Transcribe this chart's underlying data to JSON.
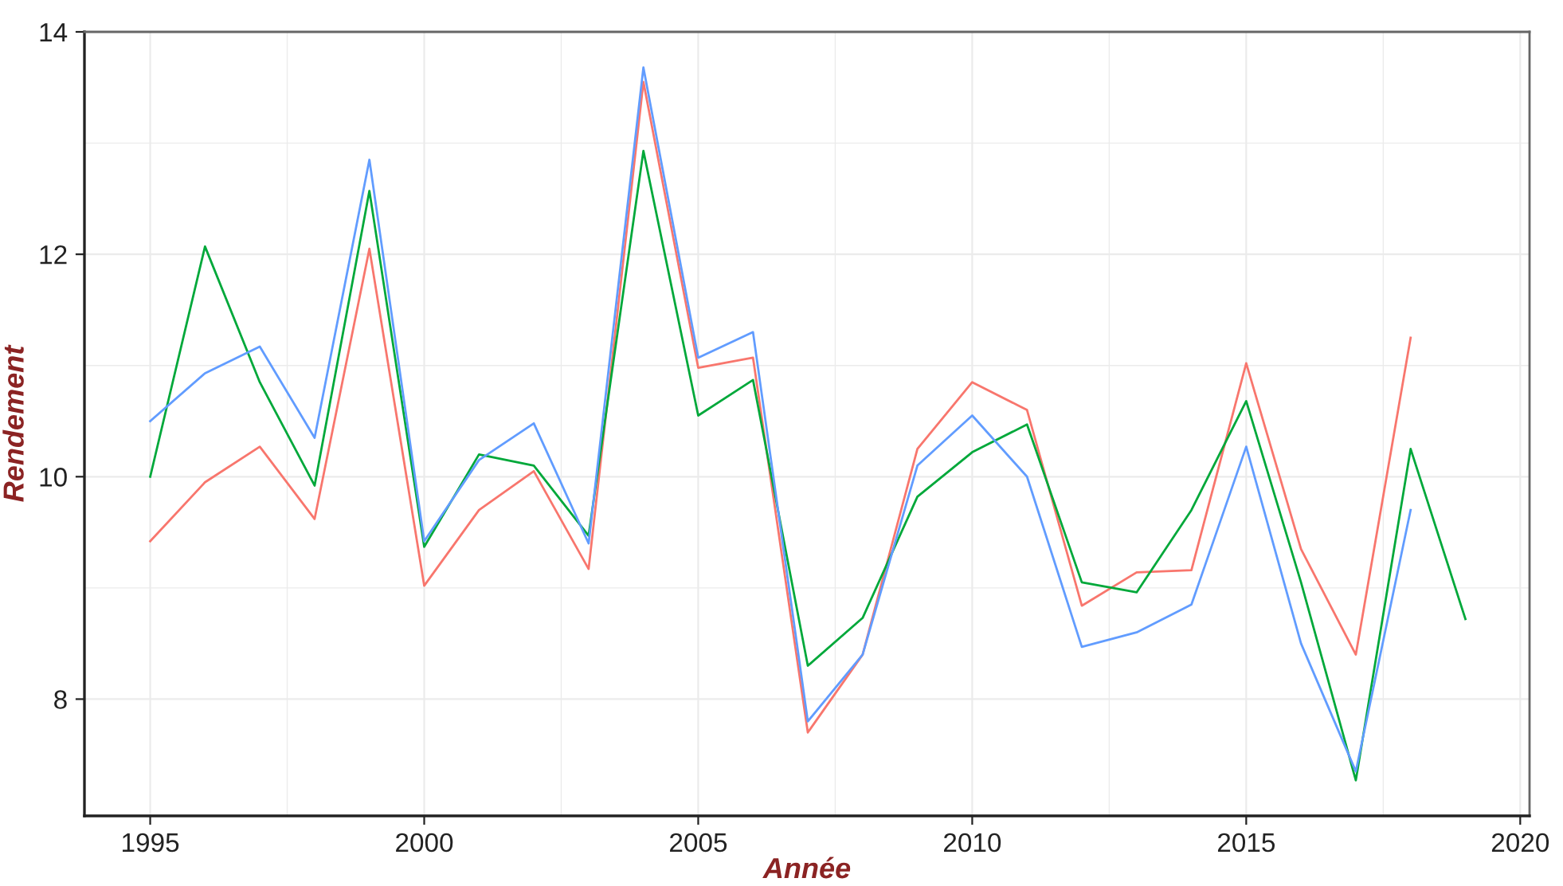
{
  "chart_data": {
    "type": "line",
    "xlabel": "Année",
    "ylabel": "Rendement",
    "xlim": [
      1993.8,
      2020.17
    ],
    "xticks": [
      1995,
      2000,
      2005,
      2010,
      2015,
      2020
    ],
    "ylim": [
      6.95,
      14
    ],
    "yticks": [
      8,
      10,
      12,
      14
    ],
    "grid": true,
    "marker": "none",
    "line_style": "solid",
    "series": [
      {
        "color": "#f8766d",
        "x": [
          1995,
          1996,
          1997,
          1998,
          1999,
          2000,
          2001,
          2002,
          2003,
          2004,
          2005,
          2006,
          2007,
          2008,
          2009,
          2010,
          2011,
          2012,
          2013,
          2014,
          2015,
          2016,
          2017,
          2018
        ],
        "values": [
          9.42,
          9.95,
          10.27,
          9.62,
          12.05,
          9.02,
          9.7,
          10.05,
          9.17,
          13.55,
          10.98,
          11.07,
          7.7,
          8.4,
          10.25,
          10.85,
          10.6,
          8.84,
          9.14,
          9.16,
          11.02,
          9.35,
          8.4,
          11.25
        ]
      },
      {
        "color": "#00a83a",
        "x": [
          1995,
          1996,
          1997,
          1998,
          1999,
          2000,
          2001,
          2002,
          2003,
          2004,
          2005,
          2006,
          2007,
          2008,
          2009,
          2010,
          2011,
          2012,
          2013,
          2014,
          2015,
          2016,
          2017,
          2018,
          2019
        ],
        "values": [
          10.0,
          12.07,
          10.85,
          9.92,
          12.57,
          9.37,
          10.2,
          10.1,
          9.47,
          12.93,
          10.55,
          10.87,
          8.3,
          8.73,
          9.82,
          10.22,
          10.47,
          9.05,
          8.96,
          9.7,
          10.68,
          9.05,
          7.27,
          10.25,
          8.72
        ]
      },
      {
        "color": "#619cff",
        "x": [
          1995,
          1996,
          1997,
          1998,
          1999,
          2000,
          2001,
          2002,
          2003,
          2004,
          2005,
          2006,
          2007,
          2008,
          2009,
          2010,
          2011,
          2012,
          2013,
          2014,
          2015,
          2016,
          2017,
          2018
        ],
        "values": [
          10.5,
          10.93,
          11.17,
          10.35,
          12.85,
          9.42,
          10.15,
          10.48,
          9.4,
          13.68,
          11.07,
          11.3,
          7.8,
          8.4,
          10.1,
          10.55,
          10.0,
          8.47,
          8.6,
          8.85,
          10.27,
          8.5,
          7.35,
          9.7
        ]
      }
    ]
  }
}
